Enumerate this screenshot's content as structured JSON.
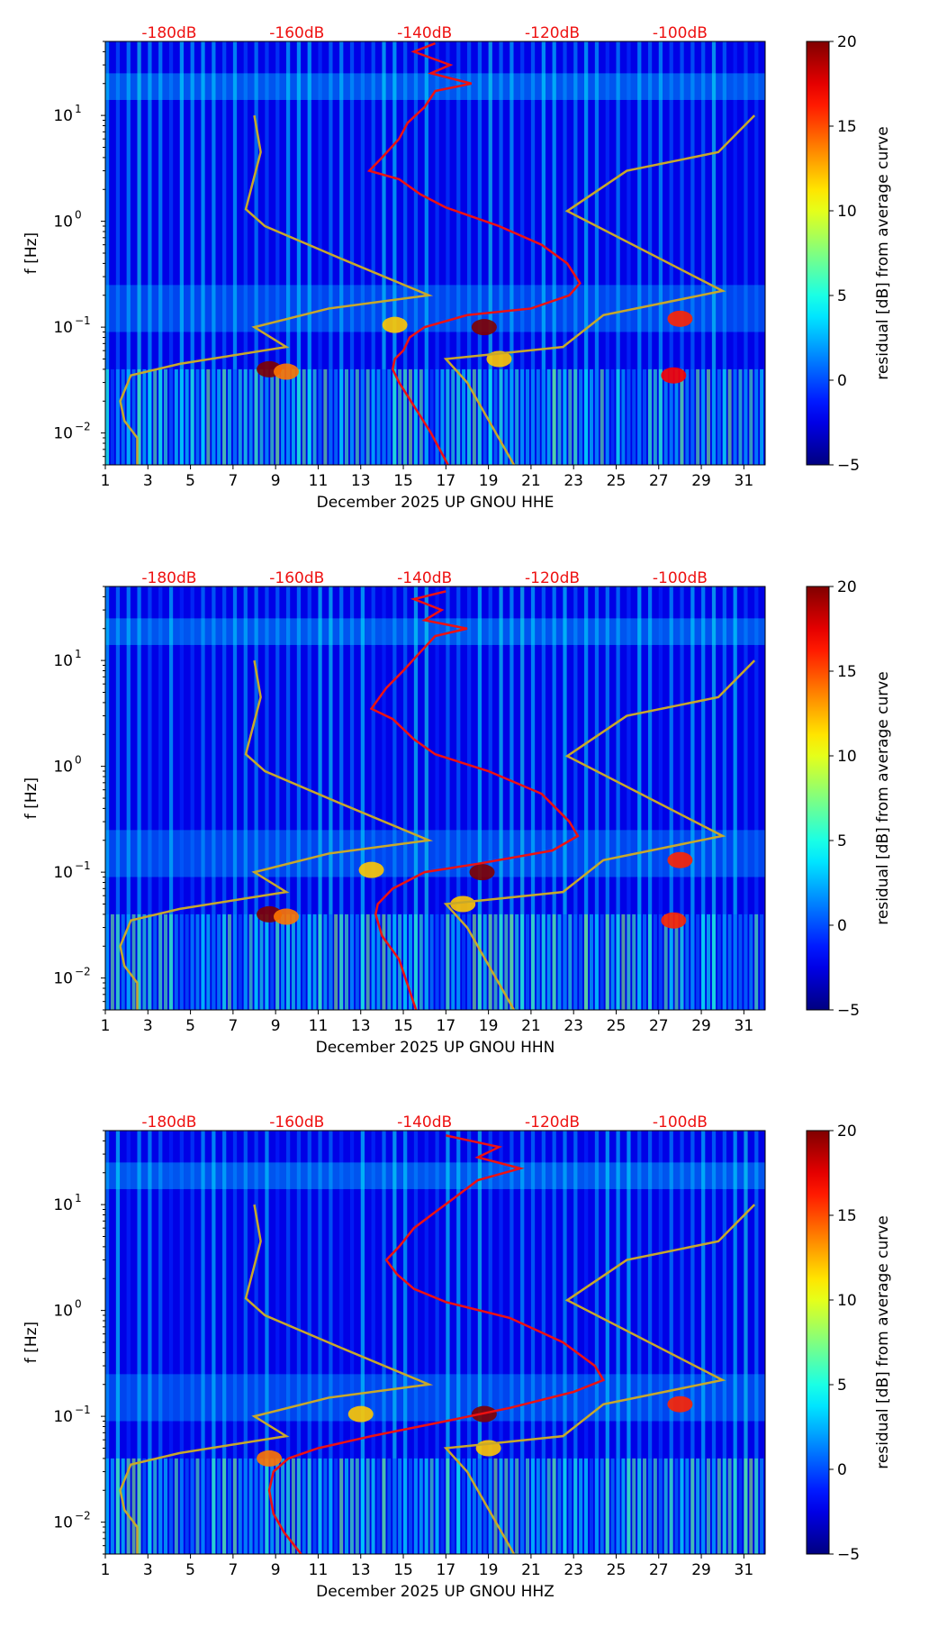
{
  "chart_data": [
    {
      "type": "heatmap",
      "channel": "HHE",
      "xlabel": "December 2025 UP GNOU  HHE",
      "ylabel": "f [Hz]",
      "x_ticks": [
        1,
        3,
        5,
        7,
        9,
        11,
        13,
        15,
        17,
        19,
        21,
        23,
        25,
        27,
        29,
        31
      ],
      "x_range": [
        1,
        32
      ],
      "y_scale": "log",
      "y_range": [
        0.005,
        50
      ],
      "y_ticks": [
        {
          "base": "10",
          "exp": "1",
          "value": 10
        },
        {
          "base": "10",
          "exp": "0",
          "value": 1
        },
        {
          "base": "10",
          "exp": "−1",
          "value": 0.1
        },
        {
          "base": "10",
          "exp": "−2",
          "value": 0.01
        }
      ],
      "top_labels": [
        {
          "text": "-180dB",
          "x": 4
        },
        {
          "text": "-160dB",
          "x": 10
        },
        {
          "text": "-140dB",
          "x": 16
        },
        {
          "text": "-120dB",
          "x": 22
        },
        {
          "text": "-100dB",
          "x": 28
        }
      ],
      "colorbar": {
        "label": "residual [dB] from average curve",
        "min": -5,
        "max": 20,
        "ticks": [
          "20",
          "15",
          "10",
          "5",
          "0",
          "−5"
        ],
        "tick_values": [
          20,
          15,
          10,
          5,
          0,
          -5
        ]
      },
      "series": [
        {
          "name": "model noise curves",
          "color": "#c8a82a",
          "lines": [
            [
              [
                8,
                10
              ],
              [
                8.3,
                4.5
              ],
              [
                7.6,
                1.3
              ],
              [
                8.5,
                0.9
              ],
              [
                12,
                0.45
              ],
              [
                16.2,
                0.2
              ],
              [
                11.5,
                0.15
              ],
              [
                8,
                0.1
              ],
              [
                9.5,
                0.065
              ],
              [
                4.5,
                0.045
              ],
              [
                2.2,
                0.035
              ],
              [
                1.7,
                0.02
              ],
              [
                1.9,
                0.013
              ],
              [
                2.5,
                0.009
              ],
              [
                2.5,
                0.005
              ]
            ],
            [
              [
                31.5,
                10
              ],
              [
                29.8,
                4.5
              ],
              [
                25.5,
                3.0
              ],
              [
                22.7,
                1.25
              ],
              [
                30,
                0.22
              ],
              [
                24.4,
                0.13
              ],
              [
                22.5,
                0.065
              ],
              [
                17,
                0.05
              ],
              [
                18,
                0.03
              ],
              [
                20.2,
                0.005
              ]
            ]
          ]
        },
        {
          "name": "average PSD curve",
          "color": "#ee1111",
          "points": [
            [
              16.5,
              48
            ],
            [
              15.5,
              40
            ],
            [
              17.2,
              30
            ],
            [
              16.3,
              25
            ],
            [
              18.2,
              20
            ],
            [
              16.5,
              17
            ],
            [
              16.0,
              12
            ],
            [
              15.2,
              8.5
            ],
            [
              14.8,
              6
            ],
            [
              14.0,
              4
            ],
            [
              13.4,
              3
            ],
            [
              14.8,
              2.5
            ],
            [
              15.8,
              1.8
            ],
            [
              17,
              1.35
            ],
            [
              19.5,
              0.9
            ],
            [
              21.5,
              0.6
            ],
            [
              22.7,
              0.4
            ],
            [
              23.3,
              0.26
            ],
            [
              22.8,
              0.2
            ],
            [
              21,
              0.15
            ],
            [
              18,
              0.13
            ],
            [
              16,
              0.1
            ],
            [
              15.3,
              0.08
            ],
            [
              15,
              0.06
            ],
            [
              14.6,
              0.05
            ],
            [
              14.5,
              0.04
            ],
            [
              14.8,
              0.03
            ],
            [
              15.5,
              0.018
            ],
            [
              16.3,
              0.01
            ],
            [
              17.1,
              0.005
            ]
          ]
        },
        {
          "name": "dominant residual hotspots",
          "color": "#b8000a",
          "points": [
            [
              8.7,
              0.04,
              20
            ],
            [
              9.5,
              0.038,
              14
            ],
            [
              18.8,
              0.1,
              20
            ],
            [
              14.6,
              0.105,
              12
            ],
            [
              27.7,
              0.035,
              17
            ],
            [
              28.0,
              0.12,
              16
            ],
            [
              19.5,
              0.05,
              12
            ]
          ]
        }
      ]
    },
    {
      "type": "heatmap",
      "channel": "HHN",
      "xlabel": "December 2025 UP GNOU  HHN",
      "ylabel": "f [Hz]",
      "x_ticks": [
        1,
        3,
        5,
        7,
        9,
        11,
        13,
        15,
        17,
        19,
        21,
        23,
        25,
        27,
        29,
        31
      ],
      "x_range": [
        1,
        32
      ],
      "y_scale": "log",
      "y_range": [
        0.005,
        50
      ],
      "y_ticks": [
        {
          "base": "10",
          "exp": "1",
          "value": 10
        },
        {
          "base": "10",
          "exp": "0",
          "value": 1
        },
        {
          "base": "10",
          "exp": "−1",
          "value": 0.1
        },
        {
          "base": "10",
          "exp": "−2",
          "value": 0.01
        }
      ],
      "top_labels": [
        {
          "text": "-180dB",
          "x": 4
        },
        {
          "text": "-160dB",
          "x": 10
        },
        {
          "text": "-140dB",
          "x": 16
        },
        {
          "text": "-120dB",
          "x": 22
        },
        {
          "text": "-100dB",
          "x": 28
        }
      ],
      "colorbar": {
        "label": "residual [dB] from average curve",
        "min": -5,
        "max": 20,
        "ticks": [
          "20",
          "15",
          "10",
          "5",
          "0",
          "−5"
        ],
        "tick_values": [
          20,
          15,
          10,
          5,
          0,
          -5
        ]
      },
      "series": [
        {
          "name": "model noise curves",
          "color": "#c8a82a",
          "lines": [
            [
              [
                8,
                10
              ],
              [
                8.3,
                4.5
              ],
              [
                7.6,
                1.3
              ],
              [
                8.5,
                0.9
              ],
              [
                12,
                0.45
              ],
              [
                16.2,
                0.2
              ],
              [
                11.5,
                0.15
              ],
              [
                8,
                0.1
              ],
              [
                9.5,
                0.065
              ],
              [
                4.5,
                0.045
              ],
              [
                2.2,
                0.035
              ],
              [
                1.7,
                0.02
              ],
              [
                1.9,
                0.013
              ],
              [
                2.5,
                0.009
              ],
              [
                2.5,
                0.005
              ]
            ],
            [
              [
                31.5,
                10
              ],
              [
                29.8,
                4.5
              ],
              [
                25.5,
                3.0
              ],
              [
                22.7,
                1.25
              ],
              [
                30,
                0.22
              ],
              [
                24.4,
                0.13
              ],
              [
                22.5,
                0.065
              ],
              [
                17,
                0.05
              ],
              [
                18,
                0.03
              ],
              [
                20.2,
                0.005
              ]
            ]
          ]
        },
        {
          "name": "average PSD curve",
          "color": "#ee1111",
          "points": [
            [
              17,
              45
            ],
            [
              15.5,
              38
            ],
            [
              16.8,
              30
            ],
            [
              16.0,
              24
            ],
            [
              18.0,
              20
            ],
            [
              16.5,
              17
            ],
            [
              15.8,
              12
            ],
            [
              15.0,
              8
            ],
            [
              14.2,
              5.5
            ],
            [
              13.5,
              3.5
            ],
            [
              14.5,
              2.8
            ],
            [
              15.5,
              1.8
            ],
            [
              16.5,
              1.3
            ],
            [
              19,
              0.9
            ],
            [
              21.5,
              0.55
            ],
            [
              22.8,
              0.3
            ],
            [
              23.2,
              0.22
            ],
            [
              22,
              0.16
            ],
            [
              18.5,
              0.12
            ],
            [
              16,
              0.1
            ],
            [
              14.5,
              0.07
            ],
            [
              13.8,
              0.05
            ],
            [
              13.7,
              0.04
            ],
            [
              14.0,
              0.025
            ],
            [
              14.8,
              0.015
            ],
            [
              15.6,
              0.005
            ]
          ]
        },
        {
          "name": "dominant residual hotspots",
          "color": "#b8000a",
          "points": [
            [
              8.7,
              0.04,
              20
            ],
            [
              9.5,
              0.038,
              14
            ],
            [
              18.7,
              0.1,
              20
            ],
            [
              13.5,
              0.105,
              12
            ],
            [
              27.7,
              0.035,
              16
            ],
            [
              28.0,
              0.13,
              16
            ],
            [
              17.8,
              0.05,
              12
            ]
          ]
        }
      ]
    },
    {
      "type": "heatmap",
      "channel": "HHZ",
      "xlabel": "December 2025 UP GNOU  HHZ",
      "ylabel": "f [Hz]",
      "x_ticks": [
        1,
        3,
        5,
        7,
        9,
        11,
        13,
        15,
        17,
        19,
        21,
        23,
        25,
        27,
        29,
        31
      ],
      "x_range": [
        1,
        32
      ],
      "y_scale": "log",
      "y_range": [
        0.005,
        50
      ],
      "y_ticks": [
        {
          "base": "10",
          "exp": "1",
          "value": 10
        },
        {
          "base": "10",
          "exp": "0",
          "value": 1
        },
        {
          "base": "10",
          "exp": "−1",
          "value": 0.1
        },
        {
          "base": "10",
          "exp": "−2",
          "value": 0.01
        }
      ],
      "top_labels": [
        {
          "text": "-180dB",
          "x": 4
        },
        {
          "text": "-160dB",
          "x": 10
        },
        {
          "text": "-140dB",
          "x": 16
        },
        {
          "text": "-120dB",
          "x": 22
        },
        {
          "text": "-100dB",
          "x": 28
        }
      ],
      "colorbar": {
        "label": "residual [dB] from average curve",
        "min": -5,
        "max": 20,
        "ticks": [
          "20",
          "15",
          "10",
          "5",
          "0",
          "−5"
        ],
        "tick_values": [
          20,
          15,
          10,
          5,
          0,
          -5
        ]
      },
      "series": [
        {
          "name": "model noise curves",
          "color": "#c8a82a",
          "lines": [
            [
              [
                8,
                10
              ],
              [
                8.3,
                4.5
              ],
              [
                7.6,
                1.3
              ],
              [
                8.5,
                0.9
              ],
              [
                12,
                0.45
              ],
              [
                16.2,
                0.2
              ],
              [
                11.5,
                0.15
              ],
              [
                8,
                0.1
              ],
              [
                9.5,
                0.065
              ],
              [
                4.5,
                0.045
              ],
              [
                2.2,
                0.035
              ],
              [
                1.7,
                0.02
              ],
              [
                1.9,
                0.013
              ],
              [
                2.5,
                0.009
              ],
              [
                2.5,
                0.005
              ]
            ],
            [
              [
                31.5,
                10
              ],
              [
                29.8,
                4.5
              ],
              [
                25.5,
                3.0
              ],
              [
                22.7,
                1.25
              ],
              [
                30,
                0.22
              ],
              [
                24.4,
                0.13
              ],
              [
                22.5,
                0.065
              ],
              [
                17,
                0.05
              ],
              [
                18,
                0.03
              ],
              [
                20.2,
                0.005
              ]
            ]
          ]
        },
        {
          "name": "average PSD curve",
          "color": "#ee1111",
          "points": [
            [
              17,
              45
            ],
            [
              19.5,
              35
            ],
            [
              18.5,
              28
            ],
            [
              20.5,
              22
            ],
            [
              18.5,
              17
            ],
            [
              17.5,
              12
            ],
            [
              16.5,
              8.5
            ],
            [
              15.5,
              6
            ],
            [
              14.8,
              4
            ],
            [
              14.2,
              3
            ],
            [
              14.7,
              2.2
            ],
            [
              15.5,
              1.6
            ],
            [
              17,
              1.2
            ],
            [
              20,
              0.85
            ],
            [
              22.5,
              0.5
            ],
            [
              24,
              0.3
            ],
            [
              24.4,
              0.22
            ],
            [
              23,
              0.17
            ],
            [
              20,
              0.12
            ],
            [
              17,
              0.09
            ],
            [
              13.5,
              0.065
            ],
            [
              11,
              0.05
            ],
            [
              9.6,
              0.04
            ],
            [
              8.9,
              0.03
            ],
            [
              8.7,
              0.02
            ],
            [
              8.9,
              0.012
            ],
            [
              9.4,
              0.008
            ],
            [
              10.2,
              0.005
            ]
          ]
        },
        {
          "name": "dominant residual hotspots",
          "color": "#b8000a",
          "points": [
            [
              18.8,
              0.105,
              20
            ],
            [
              13.0,
              0.105,
              12
            ],
            [
              28.0,
              0.13,
              16
            ],
            [
              19.0,
              0.05,
              12
            ],
            [
              8.7,
              0.04,
              14
            ]
          ]
        }
      ]
    }
  ]
}
